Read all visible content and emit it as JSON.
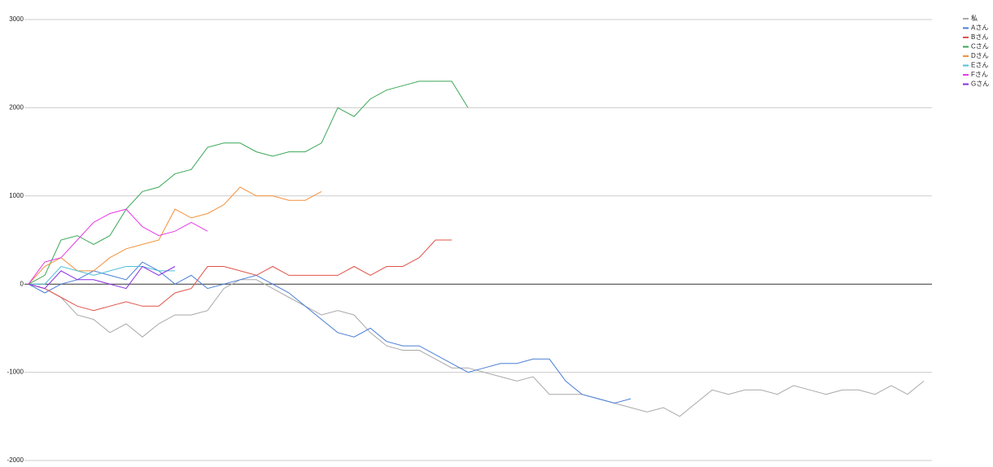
{
  "chart_data": {
    "type": "line",
    "x": [
      0,
      1,
      2,
      3,
      4,
      5,
      6,
      7,
      8,
      9,
      10,
      11,
      12,
      13,
      14,
      15,
      16,
      17,
      18,
      19,
      20,
      21,
      22,
      23,
      24,
      25,
      26,
      27,
      28,
      29,
      30,
      31,
      32,
      33,
      34,
      35,
      36,
      37,
      38,
      39,
      40,
      41,
      42,
      43,
      44,
      45,
      46,
      47,
      48,
      49,
      50,
      51,
      52,
      53,
      54,
      55
    ],
    "xlim": [
      0,
      55.5
    ],
    "ylim": [
      -2000,
      3000
    ],
    "yticks": [
      -2000,
      -1000,
      0,
      1000,
      2000,
      3000
    ],
    "grid": true,
    "legend": "top-right",
    "series": [
      {
        "name": "私",
        "color": "#a9a9a9",
        "values": [
          0,
          -50,
          -150,
          -350,
          -400,
          -550,
          -450,
          -600,
          -450,
          -350,
          -350,
          -300,
          -50,
          50,
          50,
          -50,
          -150,
          -250,
          -350,
          -300,
          -350,
          -550,
          -700,
          -750,
          -750,
          -850,
          -950,
          -950,
          -1000,
          -1050,
          -1100,
          -1050,
          -1250,
          -1250,
          -1250,
          -1300,
          -1350,
          -1400,
          -1450,
          -1400,
          -1500,
          -1350,
          -1200,
          -1250,
          -1200,
          -1200,
          -1250,
          -1150,
          -1200,
          -1250,
          -1200,
          -1200,
          -1250,
          -1150,
          -1250,
          -1100
        ]
      },
      {
        "name": "Aさん",
        "color": "#4a7fd6",
        "values": [
          0,
          -100,
          0,
          50,
          150,
          100,
          50,
          250,
          150,
          0,
          100,
          -50,
          0,
          50,
          100,
          0,
          -100,
          -250,
          -400,
          -550,
          -600,
          -500,
          -650,
          -700,
          -700,
          -800,
          -900,
          -1000,
          -950,
          -900,
          -900,
          -850,
          -850,
          -1100,
          -1250,
          -1300,
          -1350,
          -1300,
          null,
          null,
          null,
          null,
          null,
          null,
          null,
          null,
          null,
          null,
          null,
          null,
          null,
          null,
          null,
          null,
          null,
          null
        ]
      },
      {
        "name": "Bさん",
        "color": "#e0534a",
        "values": [
          0,
          -50,
          -150,
          -250,
          -300,
          -250,
          -200,
          -250,
          -250,
          -100,
          -50,
          200,
          200,
          150,
          100,
          200,
          100,
          100,
          100,
          100,
          200,
          100,
          200,
          200,
          300,
          500,
          500,
          null,
          null,
          null,
          null,
          null,
          null,
          null,
          null,
          null,
          null,
          null,
          null,
          null,
          null,
          null,
          null,
          null,
          null,
          null,
          null,
          null,
          null,
          null,
          null,
          null,
          null,
          null,
          null,
          null
        ]
      },
      {
        "name": "Cさん",
        "color": "#3aa757",
        "values": [
          0,
          100,
          500,
          550,
          450,
          550,
          850,
          1050,
          1100,
          1250,
          1300,
          1550,
          1600,
          1600,
          1500,
          1450,
          1500,
          1500,
          1600,
          2000,
          1900,
          2100,
          2200,
          2250,
          2300,
          2300,
          2300,
          2000,
          null,
          null,
          null,
          null,
          null,
          null,
          null,
          null,
          null,
          null,
          null,
          null,
          null,
          null,
          null,
          null,
          null,
          null,
          null,
          null,
          null,
          null,
          null,
          null,
          null,
          null,
          null,
          null
        ]
      },
      {
        "name": "Dさん",
        "color": "#f4913a",
        "values": [
          0,
          200,
          300,
          150,
          150,
          300,
          400,
          450,
          500,
          850,
          750,
          800,
          900,
          1100,
          1000,
          1000,
          950,
          950,
          1050,
          null,
          null,
          null,
          null,
          null,
          null,
          null,
          null,
          null,
          null,
          null,
          null,
          null,
          null,
          null,
          null,
          null,
          null,
          null,
          null,
          null,
          null,
          null,
          null,
          null,
          null,
          null,
          null,
          null,
          null,
          null,
          null,
          null,
          null,
          null,
          null,
          null
        ]
      },
      {
        "name": "Eさん",
        "color": "#4fc0d8",
        "values": [
          0,
          0,
          200,
          150,
          100,
          150,
          200,
          200,
          150,
          150,
          null,
          null,
          null,
          null,
          null,
          null,
          null,
          null,
          null,
          null,
          null,
          null,
          null,
          null,
          null,
          null,
          null,
          null,
          null,
          null,
          null,
          null,
          null,
          null,
          null,
          null,
          null,
          null,
          null,
          null,
          null,
          null,
          null,
          null,
          null,
          null,
          null,
          null,
          null,
          null,
          null,
          null,
          null,
          null,
          null,
          null
        ]
      },
      {
        "name": "Fさん",
        "color": "#e63be6",
        "values": [
          0,
          250,
          300,
          500,
          700,
          800,
          850,
          650,
          550,
          600,
          700,
          600,
          null,
          null,
          null,
          null,
          null,
          null,
          null,
          null,
          null,
          null,
          null,
          null,
          null,
          null,
          null,
          null,
          null,
          null,
          null,
          null,
          null,
          null,
          null,
          null,
          null,
          null,
          null,
          null,
          null,
          null,
          null,
          null,
          null,
          null,
          null,
          null,
          null,
          null,
          null,
          null,
          null,
          null,
          null,
          null
        ]
      },
      {
        "name": "Gさん",
        "color": "#8a2be2",
        "values": [
          0,
          -50,
          150,
          50,
          50,
          0,
          -50,
          200,
          100,
          200,
          null,
          null,
          null,
          null,
          null,
          null,
          null,
          null,
          null,
          null,
          null,
          null,
          null,
          null,
          null,
          null,
          null,
          null,
          null,
          null,
          null,
          null,
          null,
          null,
          null,
          null,
          null,
          null,
          null,
          null,
          null,
          null,
          null,
          null,
          null,
          null,
          null,
          null,
          null,
          null,
          null,
          null,
          null,
          null,
          null,
          null
        ]
      }
    ]
  }
}
